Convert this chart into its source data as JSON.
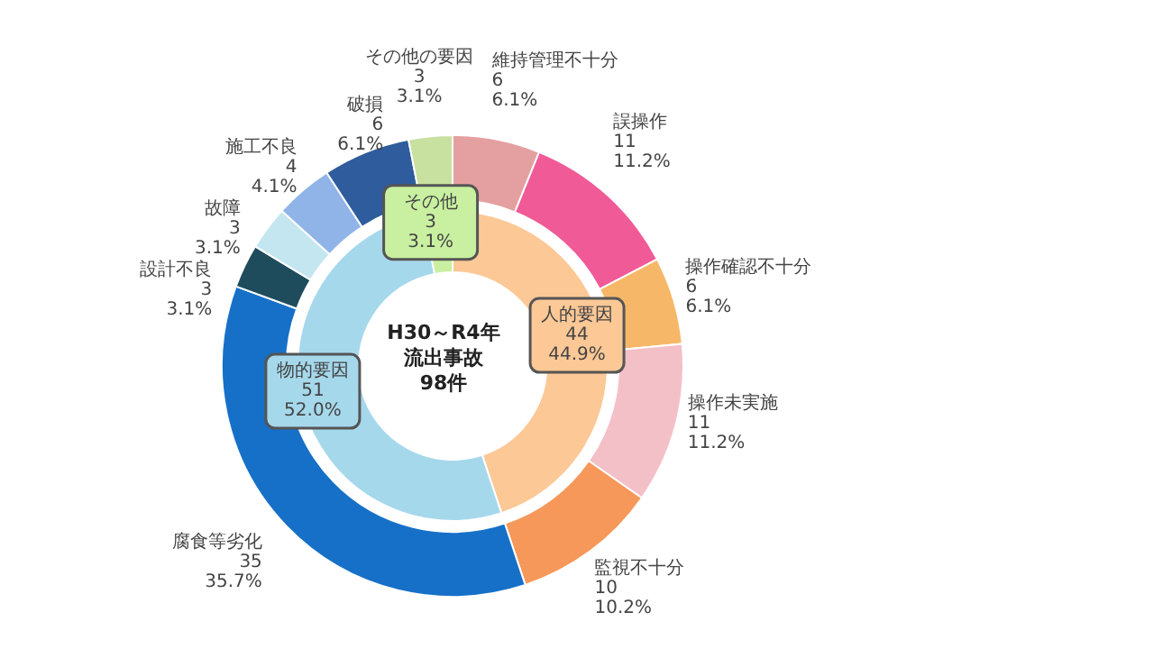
{
  "chart_data": [
    {
      "type": "donut",
      "title": "H30～R4年",
      "subtitle": "流出事故",
      "annotations": [
        "98件"
      ],
      "categories": [
        "人的要因",
        "物的要因",
        "その他"
      ],
      "values": [
        44,
        51,
        3
      ],
      "colors": [
        "#fcc896",
        "#a6d8ec",
        "#c8f0a0"
      ],
      "value_labels": [
        "44\n44.9%",
        "51\n52.0%",
        "3\n3.1%"
      ]
    },
    {
      "type": "donut",
      "categories": [
        "維持管理不十分",
        "誤操作",
        "操作確認不十分",
        "操作未実施",
        "監視不十分",
        "腐食等劣化",
        "設計不良",
        "故障",
        "施工不良",
        "破損",
        "その他の要因"
      ],
      "values": [
        6,
        11,
        6,
        11,
        10,
        35,
        3,
        3,
        4,
        6,
        3
      ],
      "colors": [
        "#e4a0a0",
        "#f05a96",
        "#f6b868",
        "#f4c0c8",
        "#f6985a",
        "#1670c8",
        "#1e4c5c",
        "#c4e6f0",
        "#90b4e8",
        "#2e5c9c",
        "#c8e0a0"
      ],
      "value_labels": [
        "6\n6.1%",
        "11\n11.2%",
        "6\n6.1%",
        "11\n11.2%",
        "10\n10.2%",
        "35\n35.7%",
        "3\n3.1%",
        "3\n3.1%",
        "4\n4.1%",
        "6\n6.1%",
        "3\n3.1%"
      ]
    }
  ]
}
